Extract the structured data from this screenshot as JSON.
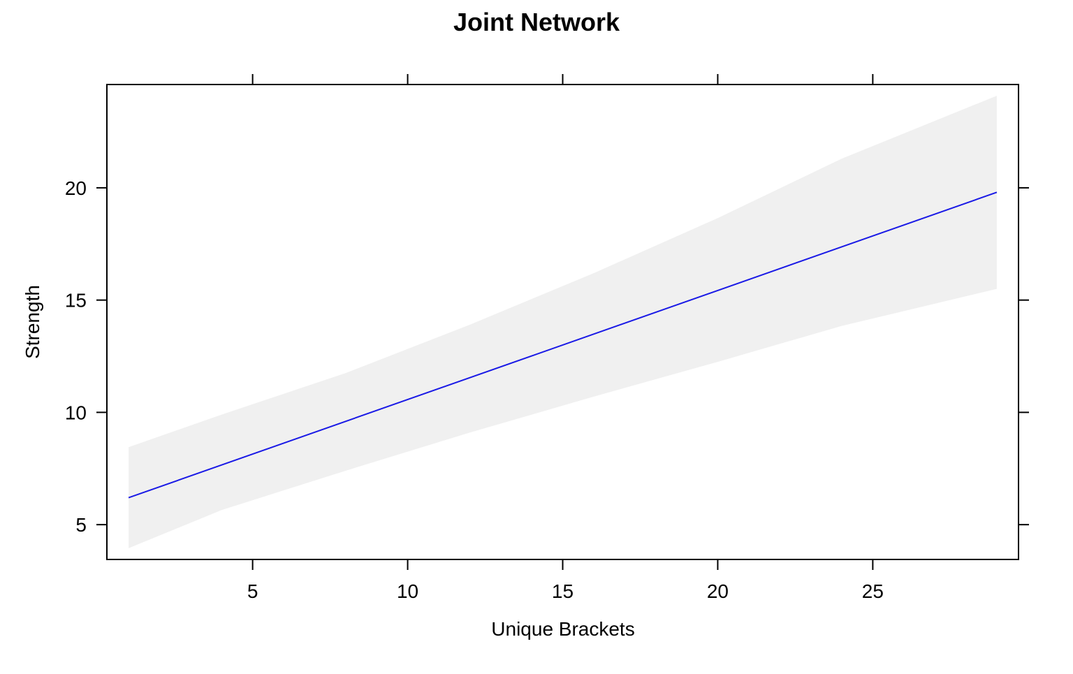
{
  "chart_data": {
    "type": "line",
    "title": "Joint Network",
    "xlabel": "Unique Brackets",
    "ylabel": "Strength",
    "xlim": [
      0.3,
      29.7
    ],
    "ylim": [
      3.45,
      24.6
    ],
    "xticks": [
      5,
      10,
      15,
      20,
      25
    ],
    "yticks": [
      5,
      10,
      15,
      20
    ],
    "grid": false,
    "series": [
      {
        "x": [
          1,
          29
        ],
        "values": [
          6.2,
          19.8
        ]
      }
    ],
    "band": {
      "x": [
        1,
        4,
        8,
        12,
        16,
        20,
        24,
        29
      ],
      "lower": [
        3.95,
        5.65,
        7.4,
        9.1,
        10.7,
        12.25,
        13.85,
        15.5
      ],
      "upper": [
        8.45,
        9.9,
        11.75,
        13.9,
        16.2,
        18.65,
        21.3,
        24.1
      ]
    },
    "colors": {
      "line": "#1a1ae6",
      "band": "#f0f0f0",
      "frame": "#000000"
    }
  }
}
